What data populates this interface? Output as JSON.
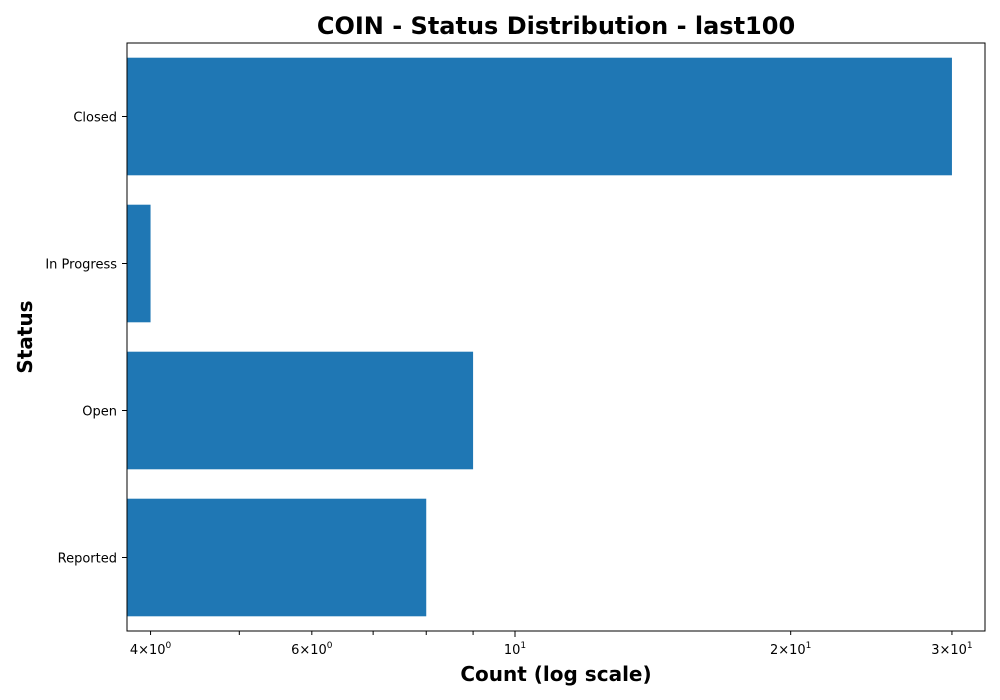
{
  "colors": {
    "bar": "#1f77b4",
    "axis": "#000000",
    "background": "#ffffff"
  },
  "chart_data": {
    "type": "bar",
    "orientation": "horizontal",
    "title": "COIN - Status Distribution - last100",
    "xlabel": "Count (log scale)",
    "ylabel": "Status",
    "x_scale": "log",
    "xlim": [
      3.77,
      32.6
    ],
    "grid": false,
    "legend": "none",
    "categories": [
      "Closed",
      "In Progress",
      "Open",
      "Reported"
    ],
    "values": [
      30,
      4,
      9,
      8
    ],
    "major_ticks": [
      {
        "value": 10,
        "base": "10",
        "exp": "1"
      }
    ],
    "minor_ticks": [
      {
        "value": 4,
        "base": "4×10",
        "exp": "0"
      },
      {
        "value": 6,
        "base": "6×10",
        "exp": "0"
      },
      {
        "value": 20,
        "base": "2×10",
        "exp": "1"
      },
      {
        "value": 30,
        "base": "3×10",
        "exp": "1"
      }
    ],
    "unlabeled_minor_ticks": [
      5,
      7,
      8,
      9
    ]
  }
}
